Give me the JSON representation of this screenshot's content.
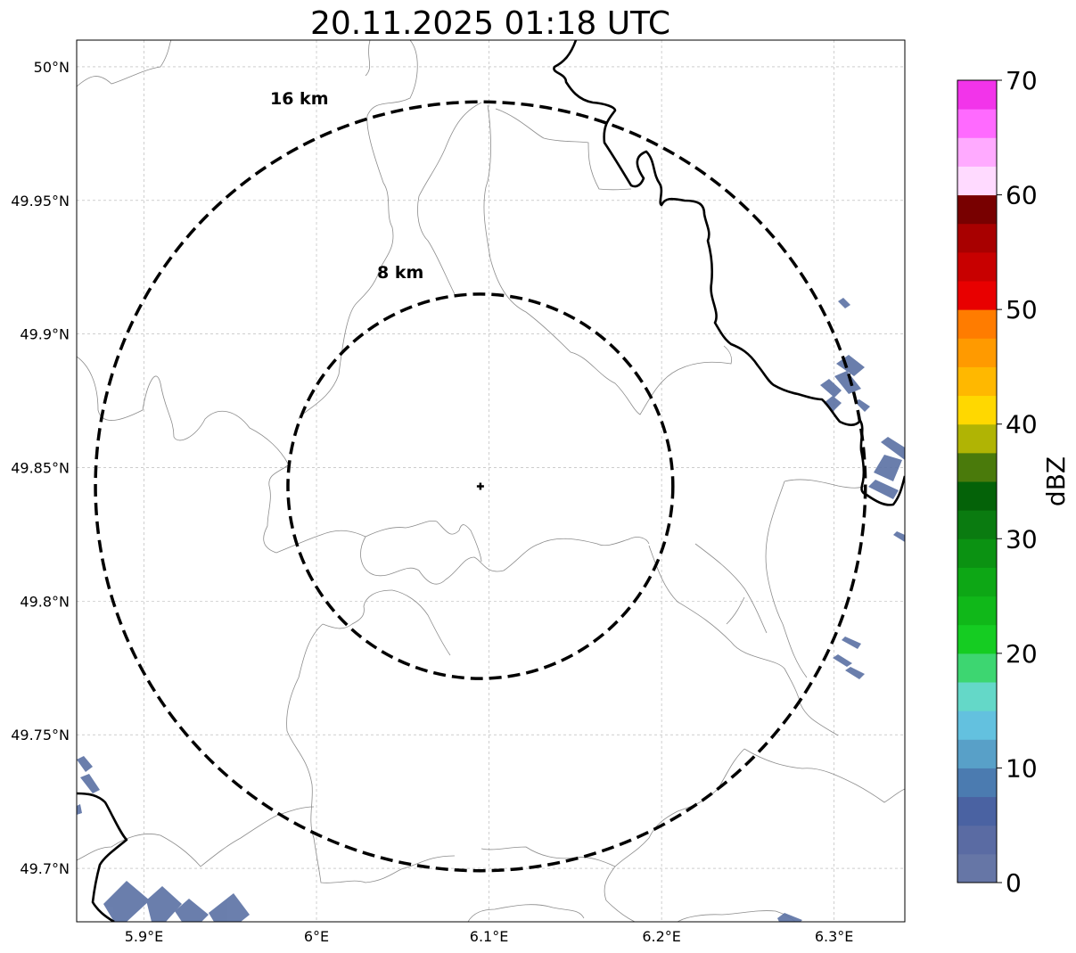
{
  "title": "20.11.2025 01:18 UTC",
  "map": {
    "lon_range": [
      5.861,
      6.341
    ],
    "lat_range": [
      49.68,
      50.01
    ],
    "grid": true,
    "x_ticks": [
      {
        "value": 5.9,
        "label": "5.9°E"
      },
      {
        "value": 6.0,
        "label": "6°E"
      },
      {
        "value": 6.1,
        "label": "6.1°E"
      },
      {
        "value": 6.2,
        "label": "6.2°E"
      },
      {
        "value": 6.3,
        "label": "6.3°E"
      }
    ],
    "y_ticks": [
      {
        "value": 50.0,
        "label": "50°N"
      },
      {
        "value": 49.95,
        "label": "49.95°N"
      },
      {
        "value": 49.9,
        "label": "49.9°N"
      },
      {
        "value": 49.85,
        "label": "49.85°N"
      },
      {
        "value": 49.8,
        "label": "49.8°N"
      },
      {
        "value": 49.75,
        "label": "49.75°N"
      },
      {
        "value": 49.7,
        "label": "49.7°N"
      }
    ],
    "center": {
      "lon": 6.095,
      "lat": 49.843,
      "marker": "plus-icon"
    },
    "range_rings": [
      {
        "radius_km": 8,
        "label": "8 km"
      },
      {
        "radius_km": 16,
        "label": "16 km"
      }
    ],
    "colors": {
      "border": "#000000",
      "admin": "#8c8c8c",
      "grid": "#b0b0b0",
      "echo": "#5e74a6"
    }
  },
  "colorbar": {
    "label": "dBZ",
    "min": 0,
    "max": 70,
    "ticks": [
      {
        "value": 0,
        "label": "0"
      },
      {
        "value": 10,
        "label": "10"
      },
      {
        "value": 20,
        "label": "20"
      },
      {
        "value": 30,
        "label": "30"
      },
      {
        "value": 40,
        "label": "40"
      },
      {
        "value": 50,
        "label": "50"
      },
      {
        "value": 60,
        "label": "60"
      },
      {
        "value": 70,
        "label": "70"
      }
    ],
    "colors": [
      "#6676a6",
      "#5a6ba3",
      "#4a62a2",
      "#4b7bb0",
      "#58a0c8",
      "#63c1df",
      "#64d8c8",
      "#3dd671",
      "#15cc22",
      "#10b819",
      "#0da715",
      "#0b9212",
      "#0a7b10",
      "#046208",
      "#4a7a0b",
      "#b0b404",
      "#ffd800",
      "#ffb800",
      "#ff9a00",
      "#ff7c00",
      "#e80000",
      "#c80000",
      "#a80000",
      "#780000",
      "#ffdaff",
      "#ffaaff",
      "#ff6aff",
      "#f234ea"
    ]
  }
}
